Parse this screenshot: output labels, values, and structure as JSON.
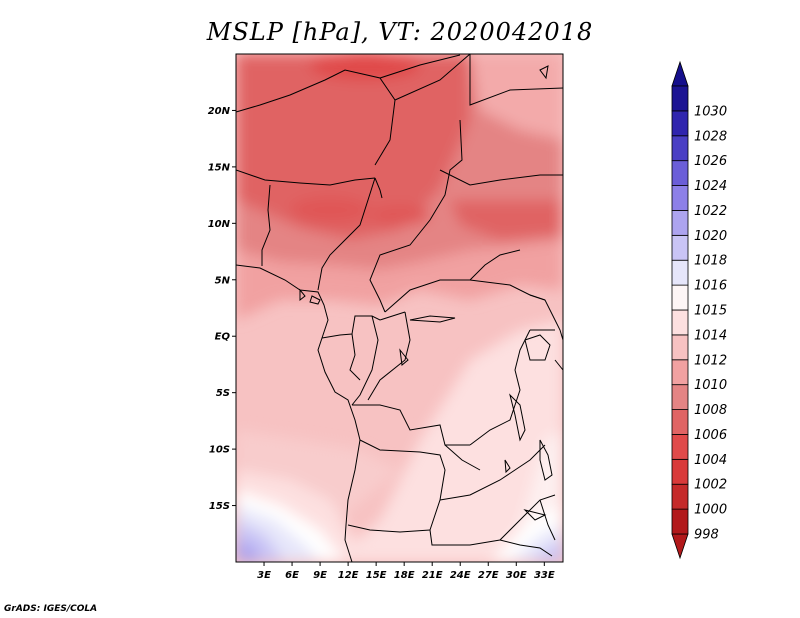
{
  "title": "MSLP [hPa], VT: 2020042018",
  "credit": "GrADS: IGES/COLA",
  "map": {
    "lon_range": [
      0,
      35
    ],
    "lat_range": [
      -20,
      25
    ],
    "lat_ticks": [
      {
        "value": 20,
        "label": "20N"
      },
      {
        "value": 15,
        "label": "15N"
      },
      {
        "value": 10,
        "label": "10N"
      },
      {
        "value": 5,
        "label": "5N"
      },
      {
        "value": 0,
        "label": "EQ"
      },
      {
        "value": -5,
        "label": "5S"
      },
      {
        "value": -10,
        "label": "10S"
      },
      {
        "value": -15,
        "label": "15S"
      }
    ],
    "lon_ticks": [
      {
        "value": 3,
        "label": "3E"
      },
      {
        "value": 6,
        "label": "6E"
      },
      {
        "value": 9,
        "label": "9E"
      },
      {
        "value": 12,
        "label": "12E"
      },
      {
        "value": 15,
        "label": "15E"
      },
      {
        "value": 18,
        "label": "18E"
      },
      {
        "value": 21,
        "label": "21E"
      },
      {
        "value": 24,
        "label": "24E"
      },
      {
        "value": 27,
        "label": "27E"
      },
      {
        "value": 30,
        "label": "30E"
      },
      {
        "value": 33,
        "label": "33E"
      }
    ]
  },
  "colorbar": {
    "levels": [
      {
        "label": "998",
        "color": "#b2191b"
      },
      {
        "label": "1000",
        "color": "#c52a2a"
      },
      {
        "label": "1002",
        "color": "#d93a3a"
      },
      {
        "label": "1004",
        "color": "#e04a4a"
      },
      {
        "label": "1006",
        "color": "#e06464"
      },
      {
        "label": "1008",
        "color": "#e48484"
      },
      {
        "label": "1010",
        "color": "#f1a1a1"
      },
      {
        "label": "1012",
        "color": "#f7c2c2"
      },
      {
        "label": "1014",
        "color": "#fde0e0"
      },
      {
        "label": "1015",
        "color": "#fdf6f6"
      },
      {
        "label": "1016",
        "color": "#e6e6fa"
      },
      {
        "label": "1018",
        "color": "#c9c4f5"
      },
      {
        "label": "1020",
        "color": "#ada4ef"
      },
      {
        "label": "1022",
        "color": "#8d80e8"
      },
      {
        "label": "1024",
        "color": "#6b5ed8"
      },
      {
        "label": "1026",
        "color": "#4a3fc4"
      },
      {
        "label": "1028",
        "color": "#3025ae"
      },
      {
        "label": "1030",
        "color": "#1c1493"
      }
    ],
    "top_arrow_color": "#150f8c",
    "bottom_arrow_color": "#b2191b"
  }
}
